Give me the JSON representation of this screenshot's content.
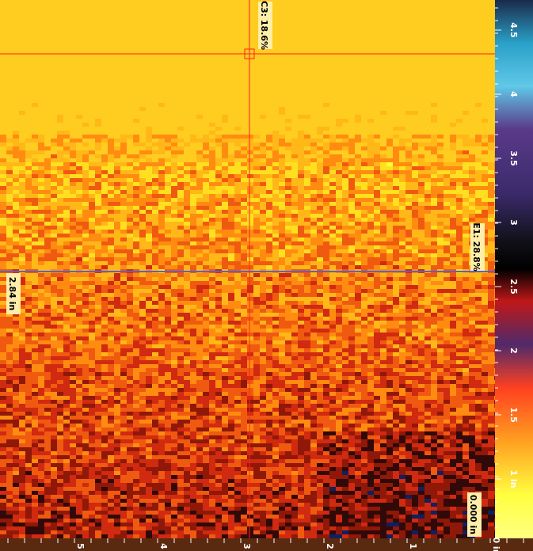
{
  "cursors": {
    "top": "C3: 18.6%",
    "middle": "E1: 28.8%"
  },
  "readouts": {
    "left": "2.84 in",
    "bottom": "0.000 in"
  },
  "right_ruler": [
    "4.5",
    "4",
    "3.5",
    "3",
    "2.5",
    "2",
    "1.5",
    "1 in"
  ],
  "bottom_ruler": [
    "5",
    "4",
    "3",
    "2",
    "1",
    "0 in"
  ]
}
